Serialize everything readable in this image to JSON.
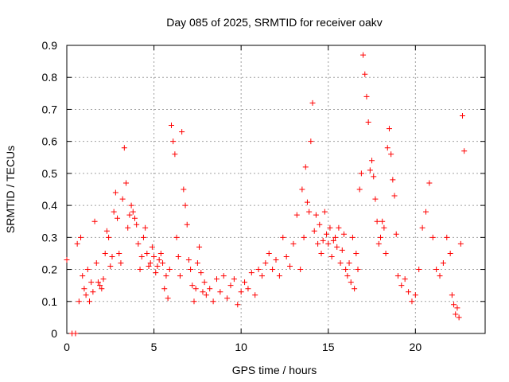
{
  "chart_data": {
    "type": "scatter",
    "title": "Day 085 of 2025, SRMTID for receiver oakv",
    "xlabel": "GPS time / hours",
    "ylabel": "SRMTID / TECUs",
    "xlim": [
      0,
      24
    ],
    "ylim": [
      0,
      0.9
    ],
    "x_ticks": [
      0,
      5,
      10,
      15,
      20
    ],
    "y_ticks": [
      0,
      0.1,
      0.2,
      0.3,
      0.4,
      0.5,
      0.6,
      0.7,
      0.8,
      0.9
    ],
    "x_tick_labels": [
      "0",
      "5",
      "10",
      "15",
      "20"
    ],
    "y_tick_labels": [
      "0",
      "0.1",
      "0.2",
      "0.3",
      "0.4",
      "0.5",
      "0.6",
      "0.7",
      "0.8",
      "0.9"
    ],
    "grid": true,
    "marker": "+",
    "series": [
      {
        "name": "SRMTID",
        "color": "#ff0000",
        "x": [
          0.0,
          0.3,
          0.5,
          0.6,
          0.7,
          0.8,
          0.9,
          1.0,
          1.1,
          1.2,
          1.3,
          1.4,
          1.5,
          1.6,
          1.7,
          1.8,
          1.9,
          2.0,
          2.1,
          2.2,
          2.3,
          2.4,
          2.5,
          2.6,
          2.7,
          2.8,
          2.9,
          3.0,
          3.1,
          3.2,
          3.3,
          3.4,
          3.5,
          3.6,
          3.7,
          3.8,
          3.9,
          4.0,
          4.1,
          4.2,
          4.3,
          4.4,
          4.5,
          4.6,
          4.7,
          4.8,
          4.9,
          5.0,
          5.1,
          5.2,
          5.3,
          5.4,
          5.5,
          5.6,
          5.7,
          5.8,
          5.9,
          6.0,
          6.1,
          6.2,
          6.3,
          6.4,
          6.5,
          6.6,
          6.7,
          6.8,
          6.9,
          7.0,
          7.1,
          7.2,
          7.3,
          7.4,
          7.5,
          7.6,
          7.7,
          7.8,
          7.9,
          8.0,
          8.2,
          8.4,
          8.6,
          8.8,
          9.0,
          9.2,
          9.4,
          9.6,
          9.8,
          10.0,
          10.2,
          10.4,
          10.6,
          10.8,
          11.0,
          11.2,
          11.4,
          11.6,
          11.8,
          12.0,
          12.2,
          12.4,
          12.6,
          12.8,
          13.0,
          13.2,
          13.4,
          13.5,
          13.6,
          13.7,
          13.8,
          13.9,
          14.0,
          14.1,
          14.2,
          14.3,
          14.4,
          14.5,
          14.6,
          14.7,
          14.8,
          14.9,
          15.0,
          15.1,
          15.2,
          15.3,
          15.4,
          15.5,
          15.6,
          15.7,
          15.8,
          15.9,
          16.0,
          16.1,
          16.2,
          16.3,
          16.4,
          16.5,
          16.6,
          16.7,
          16.8,
          16.9,
          17.0,
          17.1,
          17.2,
          17.3,
          17.4,
          17.5,
          17.6,
          17.7,
          17.8,
          17.9,
          18.0,
          18.1,
          18.2,
          18.3,
          18.4,
          18.5,
          18.6,
          18.7,
          18.8,
          18.9,
          19.0,
          19.2,
          19.4,
          19.6,
          19.8,
          20.0,
          20.2,
          20.4,
          20.6,
          20.8,
          21.0,
          21.2,
          21.4,
          21.6,
          21.8,
          22.0,
          22.1,
          22.2,
          22.3,
          22.4,
          22.5,
          22.6,
          22.7,
          22.8
        ],
        "y": [
          0.23,
          0.0,
          0.0,
          0.28,
          0.1,
          0.3,
          0.18,
          0.14,
          0.12,
          0.2,
          0.1,
          0.16,
          0.13,
          0.35,
          0.22,
          0.16,
          0.15,
          0.14,
          0.17,
          0.25,
          0.32,
          0.3,
          0.21,
          0.24,
          0.38,
          0.44,
          0.36,
          0.25,
          0.22,
          0.42,
          0.58,
          0.47,
          0.33,
          0.37,
          0.4,
          0.38,
          0.36,
          0.34,
          0.28,
          0.2,
          0.24,
          0.3,
          0.33,
          0.25,
          0.21,
          0.22,
          0.27,
          0.24,
          0.19,
          0.21,
          0.23,
          0.25,
          0.22,
          0.14,
          0.18,
          0.11,
          0.2,
          0.65,
          0.6,
          0.56,
          0.3,
          0.24,
          0.18,
          0.63,
          0.45,
          0.4,
          0.34,
          0.23,
          0.2,
          0.15,
          0.1,
          0.14,
          0.22,
          0.27,
          0.19,
          0.13,
          0.16,
          0.12,
          0.14,
          0.1,
          0.17,
          0.13,
          0.18,
          0.11,
          0.15,
          0.17,
          0.09,
          0.13,
          0.16,
          0.14,
          0.19,
          0.12,
          0.2,
          0.18,
          0.22,
          0.25,
          0.2,
          0.23,
          0.18,
          0.3,
          0.24,
          0.21,
          0.28,
          0.37,
          0.2,
          0.45,
          0.3,
          0.52,
          0.41,
          0.38,
          0.6,
          0.72,
          0.32,
          0.37,
          0.28,
          0.34,
          0.25,
          0.29,
          0.38,
          0.31,
          0.28,
          0.33,
          0.24,
          0.29,
          0.3,
          0.27,
          0.33,
          0.22,
          0.26,
          0.31,
          0.2,
          0.18,
          0.22,
          0.16,
          0.3,
          0.14,
          0.25,
          0.2,
          0.45,
          0.5,
          0.87,
          0.81,
          0.74,
          0.66,
          0.51,
          0.54,
          0.49,
          0.42,
          0.35,
          0.28,
          0.3,
          0.35,
          0.33,
          0.25,
          0.58,
          0.64,
          0.56,
          0.48,
          0.43,
          0.31,
          0.18,
          0.15,
          0.17,
          0.13,
          0.1,
          0.12,
          0.2,
          0.33,
          0.38,
          0.47,
          0.3,
          0.2,
          0.18,
          0.22,
          0.3,
          0.25,
          0.12,
          0.09,
          0.06,
          0.08,
          0.05,
          0.28,
          0.68,
          0.57
        ]
      }
    ]
  }
}
